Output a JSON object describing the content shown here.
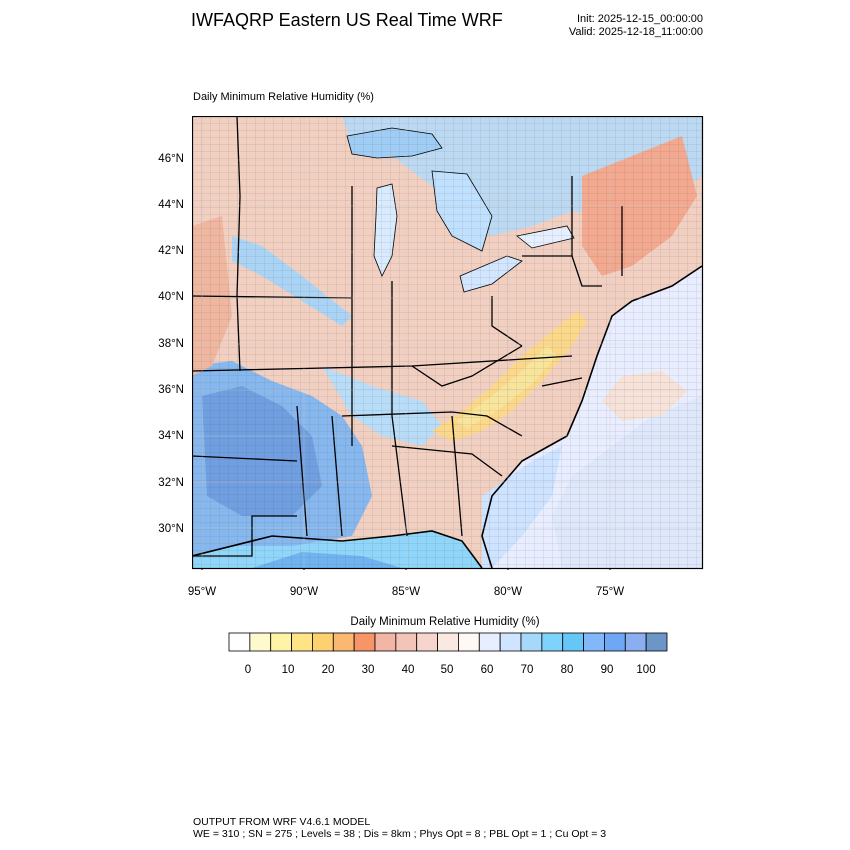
{
  "header": {
    "title": "IWFAQRP Eastern US Real Time WRF",
    "init": "Init: 2025-12-15_00:00:00",
    "valid": "Valid: 2025-12-18_11:00:00"
  },
  "map": {
    "subtitle": "Daily Minimum Relative Humidity   (%)",
    "lat_labels": [
      "46°N",
      "44°N",
      "42°N",
      "40°N",
      "38°N",
      "36°N",
      "34°N",
      "32°N",
      "30°N"
    ],
    "lon_labels": [
      "95°W",
      "90°W",
      "85°W",
      "80°W",
      "75°W"
    ],
    "colors": {
      "land": "#f1d0c2",
      "water": "#cfe4ff",
      "dry": "#fbd27a",
      "moist": "#7eb3f0"
    }
  },
  "colorbar": {
    "title": "Daily Minimum Relative Humidity  (%)",
    "labels": [
      "0",
      "10",
      "20",
      "30",
      "40",
      "50",
      "60",
      "70",
      "80",
      "90",
      "100"
    ],
    "colors": [
      "#ffffff",
      "#fffacd",
      "#fff3a6",
      "#fee487",
      "#fdd170",
      "#fbb870",
      "#f69568",
      "#f2b5a6",
      "#f3c4b8",
      "#f6d6cc",
      "#fae8e2",
      "#fff8f4",
      "#e7eeff",
      "#cfe4ff",
      "#a5d8fb",
      "#7ed3fa",
      "#66c6f5",
      "#82b7fa",
      "#6fa7f5",
      "#8aaef0",
      "#6c95c8"
    ]
  },
  "footer": {
    "line1": "OUTPUT FROM WRF V4.6.1 MODEL",
    "line2": "WE = 310 ; SN = 275 ; Levels = 38 ; Dis = 8km ; Phys Opt = 8 ; PBL Opt = 1 ; Cu Opt = 3"
  }
}
